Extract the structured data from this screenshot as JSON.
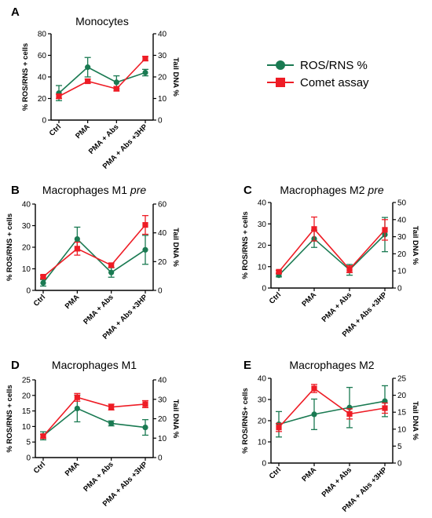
{
  "colors": {
    "ros": "#1a7a52",
    "comet": "#ee1c25"
  },
  "legend": {
    "ros_label": "ROS/RNS %",
    "comet_label": "Comet assay",
    "ros_icon": "circle-marker",
    "comet_icon": "square-marker"
  },
  "chart_data": [
    {
      "panel": "A",
      "type": "line",
      "title": "Monocytes",
      "title_italic": "",
      "categories": [
        "Ctrl",
        "PMA",
        "PMA + Abs",
        "PMA + Abs +3HP"
      ],
      "ylabel": "% ROS/RNS + cells",
      "y2label": "Tail DNA %",
      "ylim": [
        0,
        80
      ],
      "yticks": [
        0,
        20,
        40,
        60,
        80
      ],
      "y2lim": [
        0,
        40
      ],
      "y2ticks": [
        0,
        10,
        20,
        30,
        40
      ],
      "series": [
        {
          "name": "ROS/RNS %",
          "axis": "left",
          "values": [
            25,
            49,
            35,
            44
          ],
          "errors": [
            7,
            9,
            6,
            3
          ]
        },
        {
          "name": "Comet assay",
          "axis": "right",
          "values": [
            11,
            18,
            14.5,
            28.5
          ],
          "errors": [
            1,
            1,
            1,
            1
          ]
        }
      ]
    },
    {
      "panel": "B",
      "type": "line",
      "title": "Macrophages M1 ",
      "title_italic": "pre",
      "categories": [
        "Ctrl",
        "PMA",
        "PMA + Abs",
        "PMA + Abs +3HP"
      ],
      "ylabel": "% ROS/RNS + cells",
      "y2label": "Tail DNA %",
      "ylim": [
        0,
        40
      ],
      "yticks": [
        0,
        10,
        20,
        30,
        40
      ],
      "y2lim": [
        0,
        60
      ],
      "y2ticks": [
        0,
        20,
        40,
        60
      ],
      "series": [
        {
          "name": "ROS/RNS %",
          "axis": "left",
          "values": [
            3.5,
            23.8,
            8.3,
            18.8
          ],
          "errors": [
            1.5,
            5.5,
            2.2,
            6.7
          ]
        },
        {
          "name": "Comet assay",
          "axis": "right",
          "values": [
            9.5,
            29,
            17.5,
            45.5
          ],
          "errors": [
            1,
            4.5,
            1.5,
            6.5
          ]
        }
      ]
    },
    {
      "panel": "C",
      "type": "line",
      "title": "Macrophages M2 ",
      "title_italic": "pre",
      "categories": [
        "Ctrl",
        "PMA",
        "PMA + Abs",
        "PMA + Abs +3HP"
      ],
      "ylabel": "% ROS/RNS + cells",
      "y2label": "Tail DNA %",
      "ylim": [
        0,
        40
      ],
      "yticks": [
        0,
        10,
        20,
        30,
        40
      ],
      "y2lim": [
        0,
        50
      ],
      "y2ticks": [
        0,
        10,
        20,
        30,
        40,
        50
      ],
      "series": [
        {
          "name": "ROS/RNS %",
          "axis": "left",
          "values": [
            6,
            23,
            8.5,
            25
          ],
          "errors": [
            0.8,
            4,
            2.5,
            8
          ]
        },
        {
          "name": "Comet assay",
          "axis": "right",
          "values": [
            9.5,
            34.5,
            11,
            34
          ],
          "errors": [
            0.8,
            7,
            2,
            6
          ]
        }
      ]
    },
    {
      "panel": "D",
      "type": "line",
      "title": "Macrophages M1",
      "title_italic": "",
      "categories": [
        "Ctrl",
        "PMA",
        "PMA + Abs",
        "PMA + Abs +3HP"
      ],
      "ylabel": "% ROS/RNS + cells",
      "y2label": "Tail DNA %",
      "ylim": [
        0,
        25
      ],
      "yticks": [
        0,
        5,
        10,
        15,
        20,
        25
      ],
      "y2lim": [
        0,
        40
      ],
      "y2ticks": [
        0,
        10,
        20,
        30,
        40
      ],
      "series": [
        {
          "name": "ROS/RNS %",
          "axis": "left",
          "values": [
            7,
            15.8,
            11,
            9.7
          ],
          "errors": [
            1.3,
            4.3,
            0.8,
            2.5
          ]
        },
        {
          "name": "Comet assay",
          "axis": "right",
          "values": [
            11,
            31,
            26,
            27.5
          ],
          "errors": [
            1,
            2,
            1.5,
            1.8
          ]
        }
      ]
    },
    {
      "panel": "E",
      "type": "line",
      "title": "Macrophages M2",
      "title_italic": "",
      "categories": [
        "Ctrl",
        "PMA",
        "PMA + Abs",
        "PMA + Abs +3HP"
      ],
      "ylabel": "% ROS/RNS+ cells",
      "y2label": "Tail DNA %",
      "ylim": [
        0,
        40
      ],
      "yticks": [
        0,
        10,
        20,
        30,
        40
      ],
      "y2lim": [
        0,
        25
      ],
      "y2ticks": [
        0,
        5,
        10,
        15,
        20,
        25
      ],
      "series": [
        {
          "name": "ROS/RNS %",
          "axis": "left",
          "values": [
            18.3,
            23,
            26.2,
            29.2
          ],
          "errors": [
            6,
            7.2,
            9.5,
            7.3
          ]
        },
        {
          "name": "Comet assay",
          "axis": "right",
          "values": [
            10.5,
            22,
            14.5,
            16.2
          ],
          "errors": [
            1.2,
            1.2,
            1.5,
            1.5
          ]
        }
      ]
    }
  ]
}
